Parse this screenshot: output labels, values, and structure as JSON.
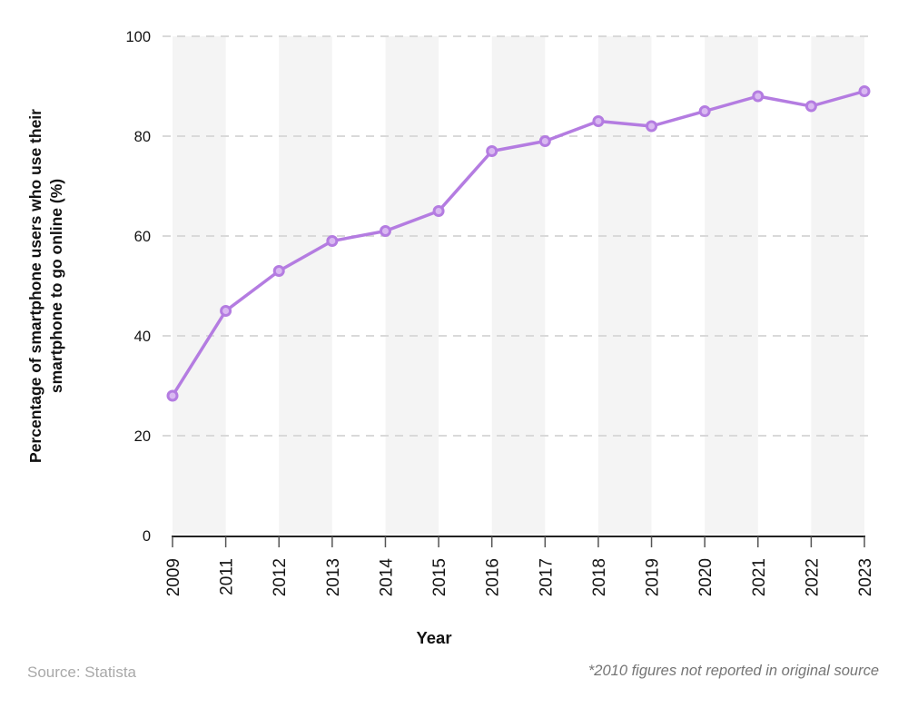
{
  "chart_data": {
    "type": "line",
    "x": [
      "2009",
      "2011",
      "2012",
      "2013",
      "2014",
      "2015",
      "2016",
      "2017",
      "2018",
      "2019",
      "2020",
      "2021",
      "2022",
      "2023"
    ],
    "series": [
      {
        "name": "Percentage of smartphone users who use their smartphone to go online (%)",
        "values": [
          28,
          45,
          53,
          59,
          61,
          65,
          77,
          79,
          83,
          82,
          85,
          88,
          86,
          89
        ]
      }
    ],
    "title": "",
    "xlabel": "Year",
    "ylabel": "Percentage of smartphone users who use their smartphone to go online (%)",
    "ylabel_lines": [
      "Percentage of smartphone users who use their",
      "smartphone to go online (%)"
    ],
    "ylim": [
      0,
      100
    ],
    "yticks": [
      0,
      20,
      40,
      60,
      80,
      100
    ],
    "grid": "horizontal-dashed",
    "legend_position": "none",
    "background_stripes": "vertical-alternating",
    "colors": {
      "line": "#b47ce1",
      "marker_fill": "#d9b9f1",
      "marker_stroke": "#b47ce1",
      "stripe": "#f4f4f4",
      "gridline": "#d9d9d9",
      "axis": "#222222",
      "tick": "#555555",
      "tick_label": "#141414"
    }
  },
  "footer": {
    "source": "Source: Statista",
    "note": "*2010 figures not reported in original source"
  }
}
